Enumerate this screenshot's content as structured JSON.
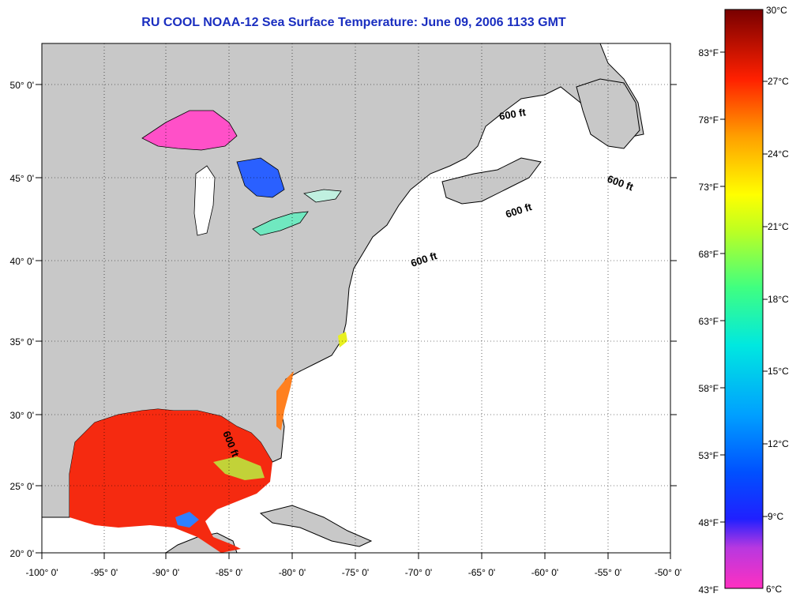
{
  "title": "RU COOL  NOAA-12  Sea Surface Temperature:  June 09, 2006 1133 GMT",
  "map": {
    "lon_labels": [
      "-100° 0'",
      "-95° 0'",
      "-90° 0'",
      "-85° 0'",
      "-80° 0'",
      "-75° 0'",
      "-70° 0'",
      "-65° 0'",
      "-60° 0'",
      "-55° 0'",
      "-50° 0'"
    ],
    "lat_labels": [
      "20° 0'",
      "25° 0'",
      "30° 0'",
      "35° 0'",
      "40° 0'",
      "45° 0'",
      "50° 0'"
    ],
    "contour_labels": [
      "600 ft",
      "600 ft",
      "600 ft",
      "600 ft",
      "600 ft"
    ],
    "colors": {
      "land": "#c8c8c8",
      "ocean": "#ffffff",
      "title": "#1a2ec0",
      "warm_sst": "#f52a10",
      "lake": "#ff50c8"
    }
  },
  "colorbar": {
    "celsius_labels": [
      "30°C",
      "27°C",
      "24°C",
      "21°C",
      "18°C",
      "15°C",
      "12°C",
      "9°C",
      "6°C"
    ],
    "fahrenheit_labels": [
      "83°F",
      "78°F",
      "73°F",
      "68°F",
      "63°F",
      "58°F",
      "53°F",
      "48°F",
      "43°F"
    ]
  }
}
